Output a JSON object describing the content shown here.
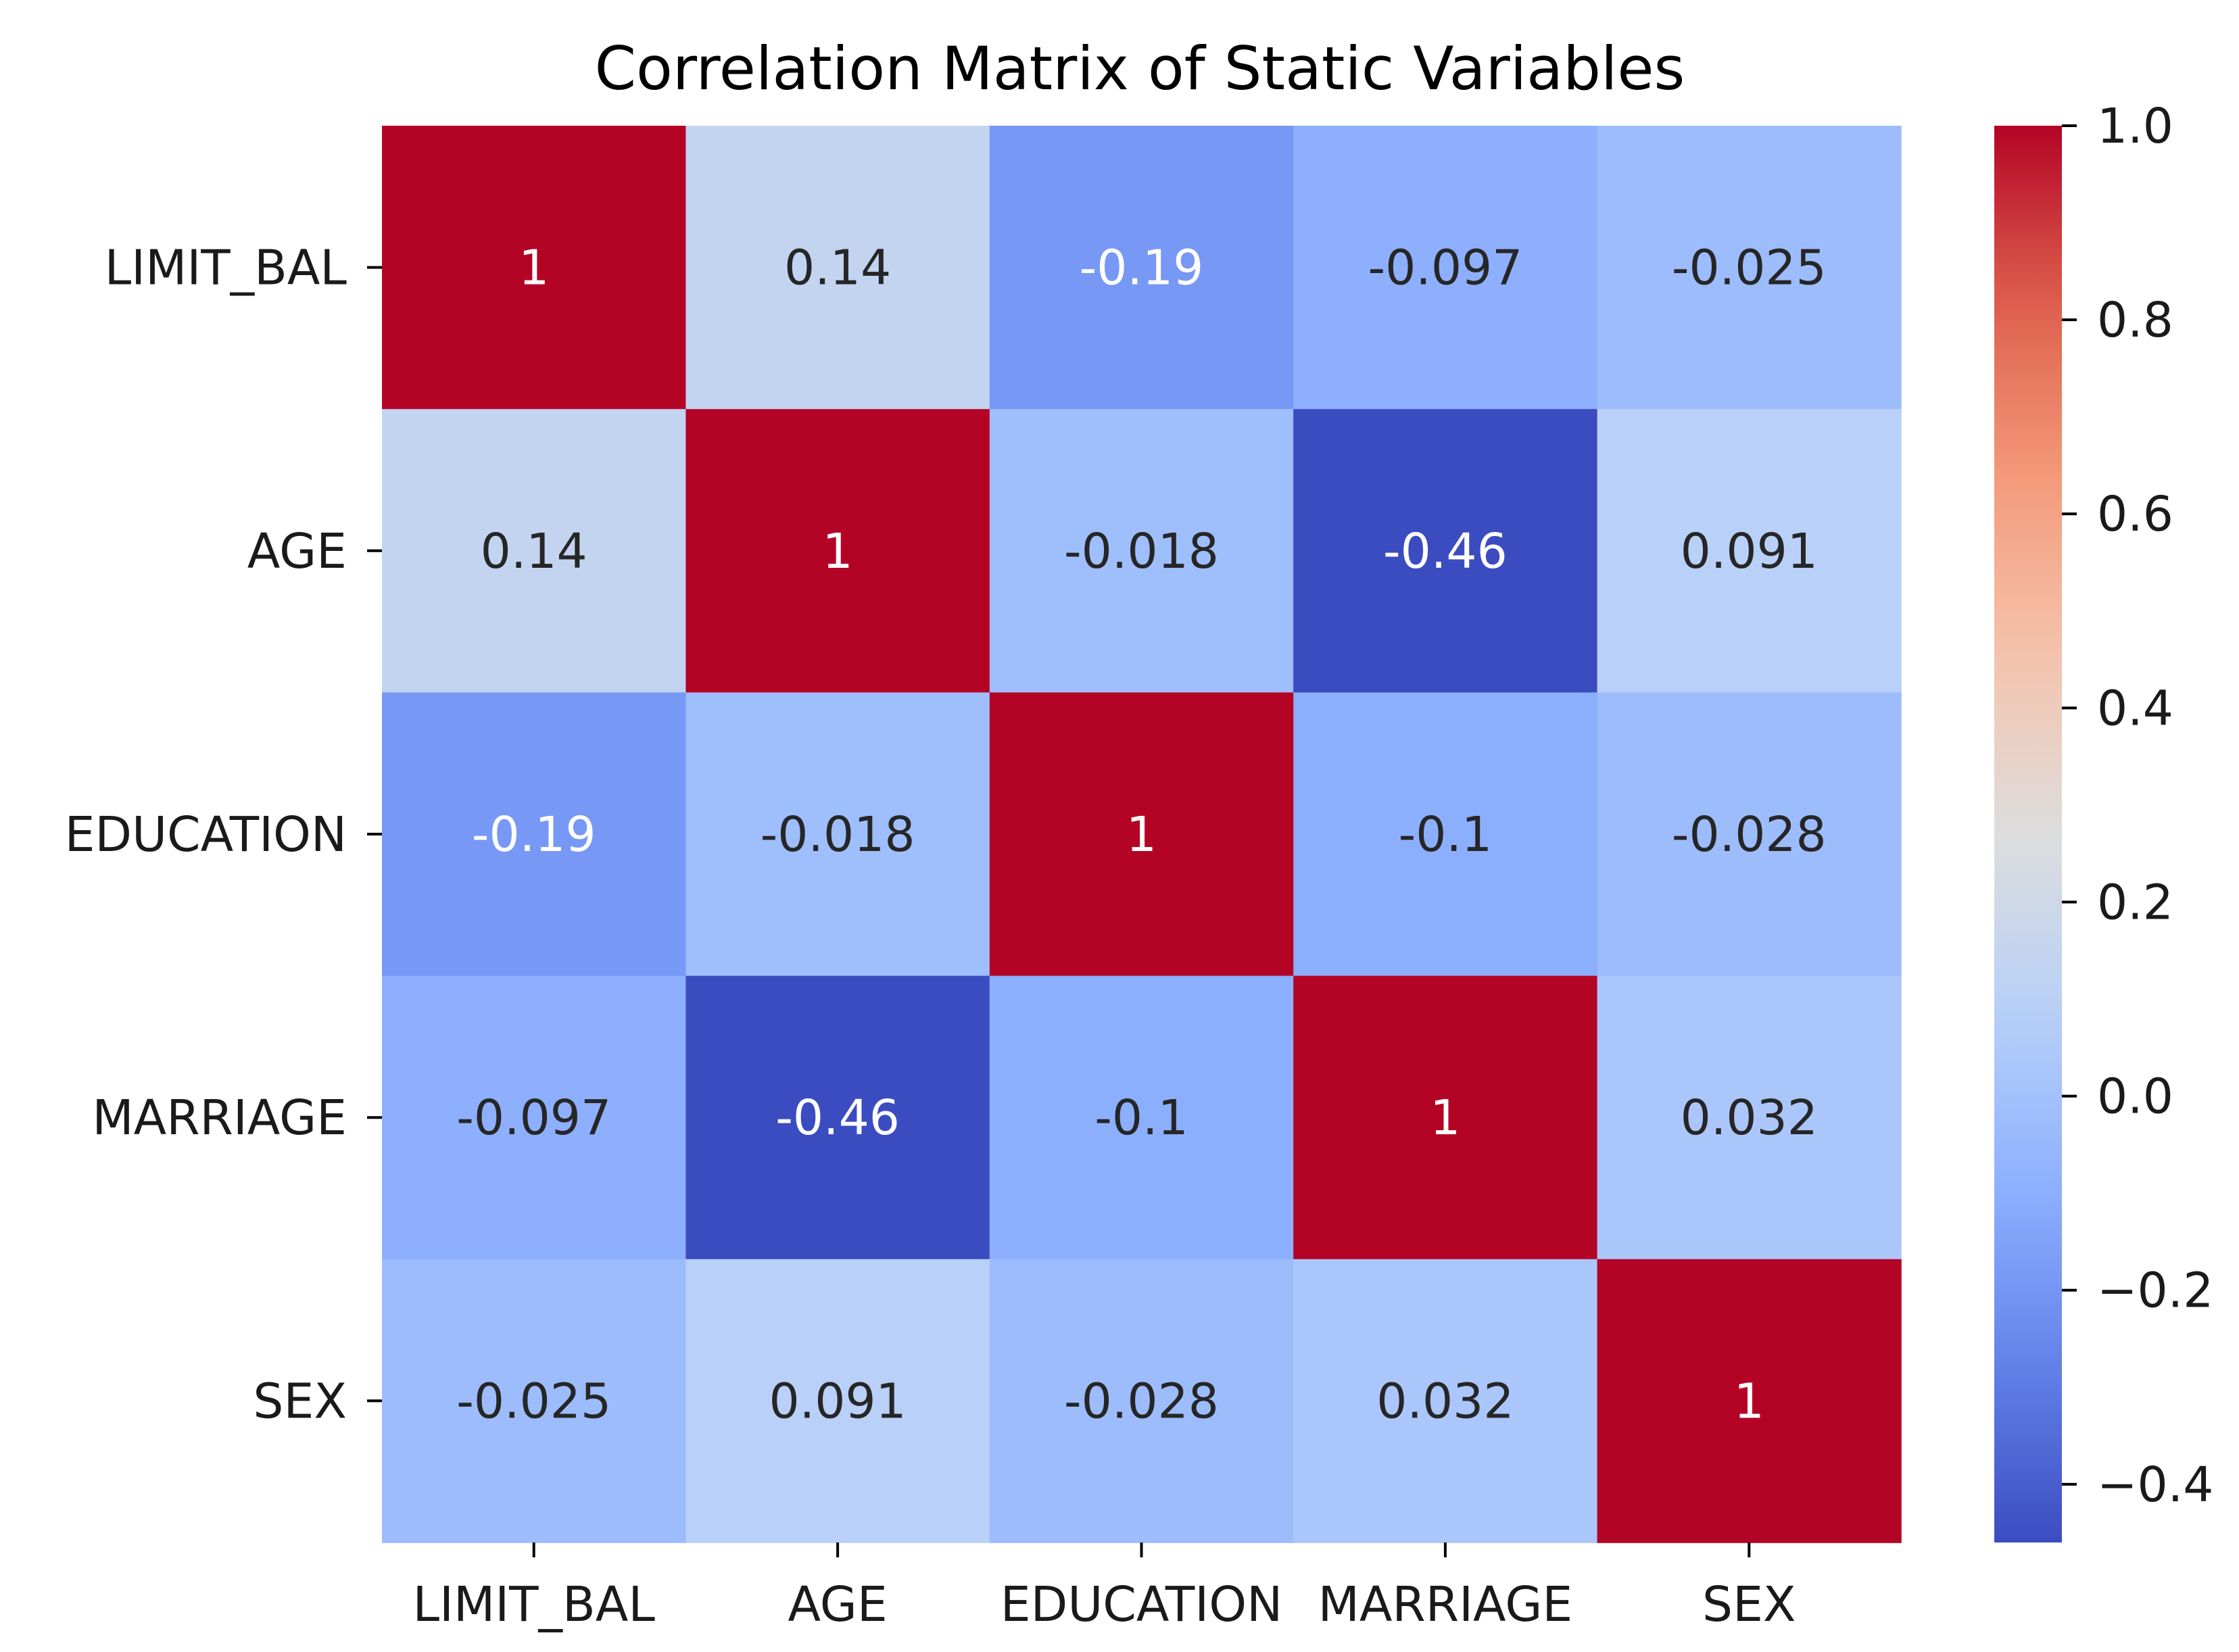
{
  "chart_data": {
    "type": "heatmap",
    "title": "Correlation Matrix of Static Variables",
    "xlabel": "",
    "ylabel": "",
    "x_labels": [
      "LIMIT_BAL",
      "AGE",
      "EDUCATION",
      "MARRIAGE",
      "SEX"
    ],
    "y_labels": [
      "LIMIT_BAL",
      "AGE",
      "EDUCATION",
      "MARRIAGE",
      "SEX"
    ],
    "values": [
      [
        1,
        0.14,
        -0.19,
        -0.097,
        -0.025
      ],
      [
        0.14,
        1,
        -0.018,
        -0.46,
        0.091
      ],
      [
        -0.19,
        -0.018,
        1,
        -0.1,
        -0.028
      ],
      [
        -0.097,
        -0.46,
        -0.1,
        1,
        0.032
      ],
      [
        -0.025,
        0.091,
        -0.028,
        0.032,
        1
      ]
    ],
    "annotations": [
      [
        "1",
        "0.14",
        "-0.19",
        "-0.097",
        "-0.025"
      ],
      [
        "0.14",
        "1",
        "-0.018",
        "-0.46",
        "0.091"
      ],
      [
        "-0.19",
        "-0.018",
        "1",
        "-0.1",
        "-0.028"
      ],
      [
        "-0.097",
        "-0.46",
        "-0.1",
        "1",
        "0.032"
      ],
      [
        "-0.025",
        "0.091",
        "-0.028",
        "0.032",
        "1"
      ]
    ],
    "colormap": "coolwarm",
    "colorbar": {
      "range": [
        -0.46,
        1.0
      ],
      "ticks": [
        1.0,
        0.8,
        0.6,
        0.4,
        0.2,
        0.0,
        -0.2,
        -0.4
      ],
      "tick_labels": [
        "1.0",
        "0.8",
        "0.6",
        "0.4",
        "0.2",
        "0.0",
        "−0.2",
        "−0.4"
      ]
    },
    "grid": false,
    "legend": "colorbar on right"
  }
}
